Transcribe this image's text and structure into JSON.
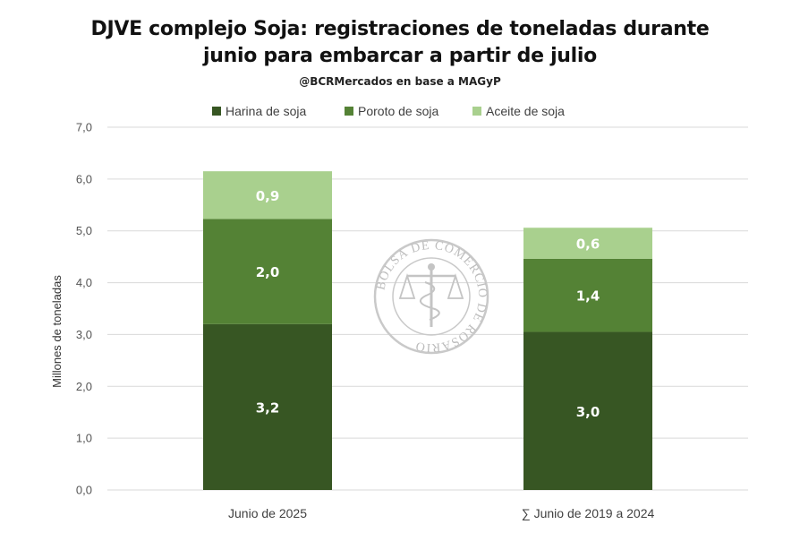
{
  "chart_data": {
    "type": "bar",
    "stacked": true,
    "title_lines": [
      "DJVE complejo Soja: registraciones de toneladas durante",
      "junio para embarcar a partir de julio"
    ],
    "subtitle": "@BCRMercados en base a MAGyP",
    "ylabel": "Millones de toneladas",
    "xlabel": "",
    "ylim": [
      0,
      7
    ],
    "ytick_labels": [
      "0,0",
      "1,0",
      "2,0",
      "3,0",
      "4,0",
      "5,0",
      "6,0",
      "7,0"
    ],
    "grid": true,
    "legend_position": "top",
    "categories": [
      "Junio de 2025",
      "∑ Junio de 2019 a 2024"
    ],
    "series": [
      {
        "name": "Harina de soja",
        "color": "#375623",
        "values": [
          3.2,
          3.05
        ],
        "labels": [
          "3,2",
          "3,0"
        ]
      },
      {
        "name": "Poroto de soja",
        "color": "#548235",
        "values": [
          2.03,
          1.41
        ],
        "labels": [
          "2,0",
          "1,4"
        ]
      },
      {
        "name": "Aceite de soja",
        "color": "#a9d08e",
        "values": [
          0.92,
          0.6
        ],
        "labels": [
          "0,9",
          "0,6"
        ]
      }
    ],
    "watermark": "BOLSA DE COMERCIO DE ROSARIO"
  }
}
